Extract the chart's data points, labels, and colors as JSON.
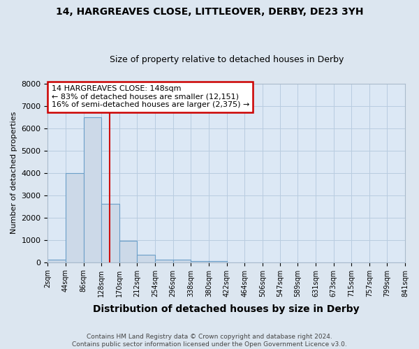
{
  "title1": "14, HARGREAVES CLOSE, LITTLEOVER, DERBY, DE23 3YH",
  "title2": "Size of property relative to detached houses in Derby",
  "xlabel": "Distribution of detached houses by size in Derby",
  "ylabel": "Number of detached properties",
  "bin_edges": [
    2,
    44,
    86,
    128,
    170,
    212,
    254,
    296,
    338,
    380,
    422,
    464,
    506,
    547,
    589,
    631,
    673,
    715,
    757,
    799,
    841
  ],
  "bar_heights": [
    100,
    4000,
    6500,
    2600,
    950,
    320,
    130,
    100,
    60,
    50,
    0,
    0,
    0,
    0,
    0,
    0,
    0,
    0,
    0,
    0
  ],
  "bar_color": "#ccd9e8",
  "bar_edge_color": "#6b9fc8",
  "vline_x": 148,
  "vline_color": "#cc1111",
  "ylim": [
    0,
    8000
  ],
  "yticks": [
    0,
    1000,
    2000,
    3000,
    4000,
    5000,
    6000,
    7000,
    8000
  ],
  "annotation_text": "14 HARGREAVES CLOSE: 148sqm\n← 83% of detached houses are smaller (12,151)\n16% of semi-detached houses are larger (2,375) →",
  "annotation_box_color": "#ffffff",
  "annotation_border_color": "#cc0000",
  "footnote": "Contains HM Land Registry data © Crown copyright and database right 2024.\nContains public sector information licensed under the Open Government Licence v3.0.",
  "bg_color": "#dce6f0",
  "plot_bg_color": "#dce8f5",
  "grid_color": "#b8cce0"
}
